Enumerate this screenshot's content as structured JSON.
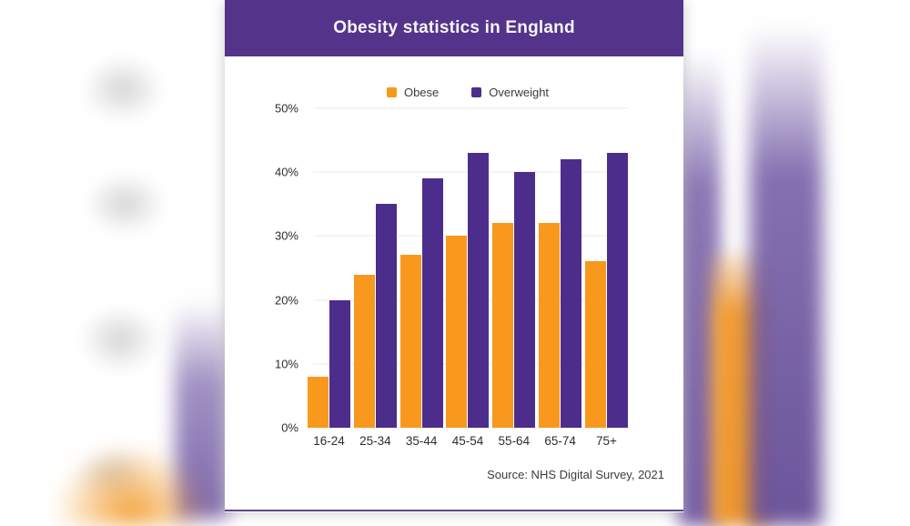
{
  "header": {
    "title": "Obesity statistics in England"
  },
  "source": {
    "label": "Source: NHS Digital Survey, 2021"
  },
  "colors": {
    "header_purple": "#54338a",
    "bar_purple": "#4d2d8c",
    "bar_orange": "#f8981d",
    "gridline": "#e9e9ec",
    "bottom_accent": "#5c4781",
    "text_dark": "#2e2e2e"
  },
  "chart_data": {
    "type": "bar",
    "title": "Obesity statistics in England",
    "categories": [
      "16-24",
      "25-34",
      "35-44",
      "45-54",
      "55-64",
      "65-74",
      "75+"
    ],
    "series": [
      {
        "name": "Obese",
        "color": "#f8981d",
        "values": [
          8,
          24,
          27,
          30,
          32,
          32,
          26
        ]
      },
      {
        "name": "Overweight",
        "color": "#4d2d8c",
        "values": [
          20,
          35,
          39,
          43,
          40,
          42,
          43
        ]
      }
    ],
    "xlabel": "",
    "ylabel": "",
    "ylim": [
      0,
      50
    ],
    "y_ticks": [
      "0%",
      "10%",
      "20%",
      "30%",
      "40%",
      "50%"
    ],
    "grid": true,
    "legend_position": "top-center",
    "annotation": "Source: NHS Digital Survey, 2021"
  }
}
